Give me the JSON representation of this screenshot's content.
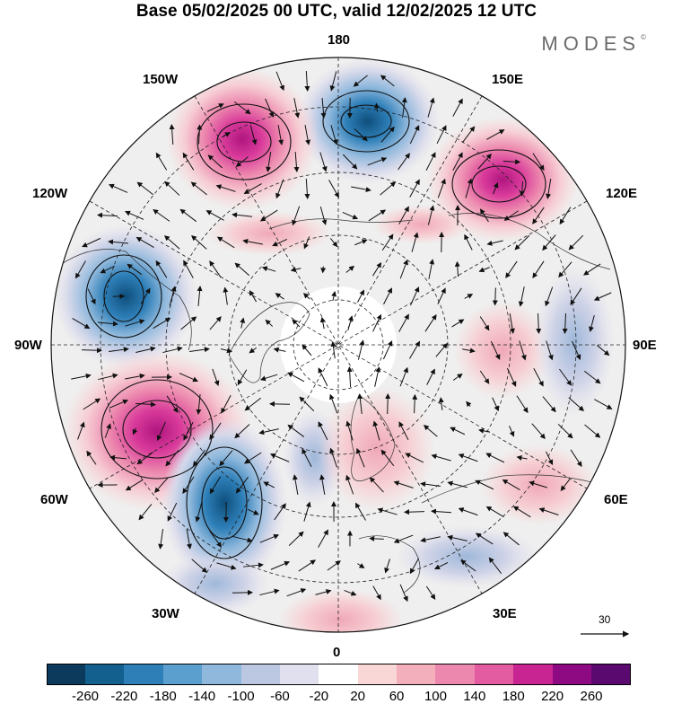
{
  "title": "Base 05/02/2025 00 UTC, valid 12/02/2025 12 UTC",
  "brand": "MODES",
  "brand_mark": "©",
  "longitude_labels": {
    "top": "180",
    "bottom": "0",
    "left": "90W",
    "right": "90E",
    "upper_left_1": "150W",
    "upper_left_2": "120W",
    "lower_left_1": "60W",
    "lower_left_2": "30W",
    "upper_right_1": "150E",
    "upper_right_2": "120E",
    "lower_right_1": "60E",
    "lower_right_2": "30E"
  },
  "vector_scale_label": "30",
  "colorbar": {
    "colors": [
      "#0b3a5c",
      "#13608f",
      "#2e7fb8",
      "#5a9fcd",
      "#8fb8dc",
      "#bcc8e2",
      "#e1e0ee",
      "#ffffff",
      "#f9d7d7",
      "#f3b0bc",
      "#ec87ad",
      "#e35ba1",
      "#c92592",
      "#8e0a83",
      "#5a0a6f"
    ],
    "tick_labels": [
      "-260",
      "-220",
      "-180",
      "-140",
      "-100",
      "-60",
      "-20",
      "20",
      "60",
      "100",
      "140",
      "180",
      "220",
      "260"
    ]
  },
  "map_data": {
    "anomalies": [
      {
        "lon": 175,
        "lat": 43,
        "value": -200,
        "sign": "negative"
      },
      {
        "lon": -155,
        "lat": 45,
        "value": 200,
        "sign": "positive"
      },
      {
        "lon": 140,
        "lat": 48,
        "value": 220,
        "sign": "positive"
      },
      {
        "lon": -105,
        "lat": 47,
        "value": -200,
        "sign": "negative"
      },
      {
        "lon": -70,
        "lat": 50,
        "value": 240,
        "sign": "positive"
      },
      {
        "lon": -40,
        "lat": 45,
        "value": -200,
        "sign": "negative"
      },
      {
        "lon": -15,
        "lat": 60,
        "value": -100,
        "sign": "negative"
      },
      {
        "lon": 15,
        "lat": 60,
        "value": 60,
        "sign": "positive"
      },
      {
        "lon": 95,
        "lat": 60,
        "value": 60,
        "sign": "positive"
      },
      {
        "lon": 80,
        "lat": 45,
        "value": 40,
        "sign": "positive"
      }
    ]
  }
}
